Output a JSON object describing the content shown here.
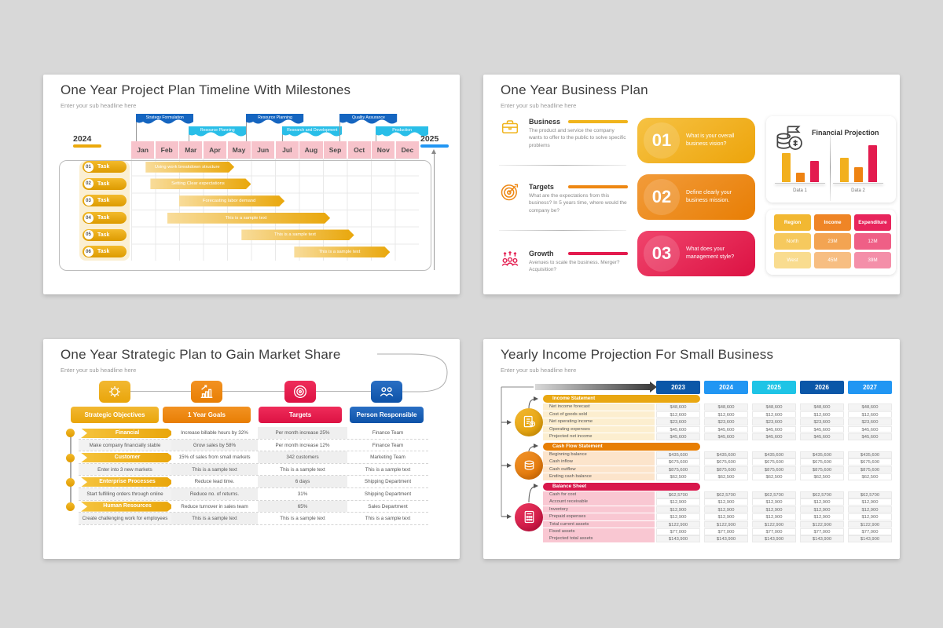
{
  "slide1": {
    "title": "One Year Project Plan Timeline With Milestones",
    "subtitle": "Enter your sub headline here",
    "year_left": "2024",
    "year_right": "2025",
    "months": [
      "Jan",
      "Feb",
      "Mar",
      "Apr",
      "May",
      "Jun",
      "Jul",
      "Aug",
      "Sep",
      "Oct",
      "Nov",
      "Dec"
    ],
    "flags": [
      {
        "label": "Strategy Formulation",
        "style": "dark",
        "month_start": 0.2,
        "month_span": 2.4
      },
      {
        "label": "Resource Planning",
        "style": "cyan",
        "month_start": 2.4,
        "month_span": 2.4
      },
      {
        "label": "Resource Planning",
        "style": "dark",
        "month_start": 4.8,
        "month_span": 2.4
      },
      {
        "label": "Research and Development",
        "style": "cyan",
        "month_start": 6.3,
        "month_span": 2.5
      },
      {
        "label": "Quality Assurance",
        "style": "dark",
        "month_start": 8.7,
        "month_span": 2.4
      },
      {
        "label": "Production",
        "style": "cyan",
        "month_start": 10.2,
        "month_span": 2.2
      }
    ],
    "tasks": [
      {
        "id": "01",
        "label": "Task",
        "text": "Using work breakdown structure",
        "start": 0.6,
        "end": 4.3
      },
      {
        "id": "02",
        "label": "Task",
        "text": "Setting Clear expectations",
        "start": 0.8,
        "end": 5.0
      },
      {
        "id": "03",
        "label": "Task",
        "text": "Forecasting labor demand",
        "start": 2.0,
        "end": 6.4
      },
      {
        "id": "04",
        "label": "Task",
        "text": "This is a sample text",
        "start": 1.5,
        "end": 8.3
      },
      {
        "id": "05",
        "label": "Task",
        "text": "This is a sample text",
        "start": 4.6,
        "end": 9.3
      },
      {
        "id": "06",
        "label": "Task",
        "text": "This is a sample text",
        "start": 6.8,
        "end": 10.8
      }
    ],
    "colors": {
      "flag_dark": "#1565C0",
      "flag_cyan": "#29BEE8",
      "month_bg": "#F7C3CB",
      "bar": "#EBA90C",
      "underline_left": "#EBA90C",
      "underline_right": "#2196F3"
    }
  },
  "slide2": {
    "title": "One Year Business Plan",
    "subtitle": "Enter your sub headline here",
    "items": [
      {
        "heading": "Business",
        "icon": "briefcase-icon",
        "accent": "#F0B41C",
        "desc": "The product and service the company wants to offer to the public to solve specific problems"
      },
      {
        "heading": "Targets",
        "icon": "target-icon",
        "accent": "#EE8712",
        "desc": "What are the expectations from this business? In 5 years time, where would the company be?"
      },
      {
        "heading": "Growth",
        "icon": "growth-icon",
        "accent": "#E31B4E",
        "desc": "Avenues to scale the business. Merger? Acquisition?"
      }
    ],
    "cards": [
      {
        "number": "01",
        "text": "What is your overall business vision?",
        "gradient": [
          "#F6C243",
          "#EDA40B"
        ]
      },
      {
        "number": "02",
        "text": "Define clearly your business mission.",
        "gradient": [
          "#F29B3A",
          "#E87E04"
        ]
      },
      {
        "number": "03",
        "text": "What does your management style?",
        "gradient": [
          "#F0446C",
          "#DC1243"
        ]
      }
    ],
    "projection": {
      "title": "Financial Projection",
      "icon": "coins-signpost-icon",
      "bar_colors": [
        "#F2B01E",
        "#EE8312",
        "#E31B4E"
      ],
      "groups": [
        {
          "label": "Data 1",
          "heights": [
            37,
            12,
            27
          ]
        },
        {
          "label": "Data 2",
          "heights": [
            31,
            19,
            47
          ]
        }
      ]
    },
    "region_table": {
      "headers": [
        "Region",
        "Income",
        "Expenditure"
      ],
      "header_colors": [
        "#F2B832",
        "#EF8526",
        "#E8255C"
      ],
      "rows": [
        {
          "cells": [
            "North",
            "23M",
            "12M"
          ],
          "colors": [
            "#F6C95E",
            "#F3A452",
            "#EF5F86"
          ]
        },
        {
          "cells": [
            "West",
            "45M",
            "39M"
          ],
          "colors": [
            "#F9DC8F",
            "#F7BE82",
            "#F48FA9"
          ]
        }
      ]
    }
  },
  "slide3": {
    "title": "One Year Strategic Plan to Gain Market Share",
    "subtitle": "Enter your sub headline here",
    "columns": [
      {
        "label": "Strategic Objectives",
        "icon": "strategy-icon",
        "color_from": "#F2B832",
        "color_to": "#E9A50A"
      },
      {
        "label": "1 Year Goals",
        "icon": "goals-icon",
        "color_from": "#F29222",
        "color_to": "#E87E04"
      },
      {
        "label": "Targets",
        "icon": "dartboard-icon",
        "color_from": "#EF2C5A",
        "color_to": "#DC1243"
      },
      {
        "label": "Person Responsible",
        "icon": "team-icon",
        "color_from": "#2A6FC4",
        "color_to": "#0D52A8"
      }
    ],
    "rows": [
      {
        "category": true,
        "cells": [
          "Financial",
          "Increase billable hours by 32%",
          "Per month increase 25%",
          "Finance Team"
        ]
      },
      {
        "category": false,
        "cells": [
          "Make company financially stable",
          "Grow sales by 58%",
          "Per month increase 12%",
          "Finance Team"
        ]
      },
      {
        "category": true,
        "cells": [
          "Customer",
          "15% of sales from small markets",
          "342 customers",
          "Marketing Team"
        ]
      },
      {
        "category": false,
        "cells": [
          "Enter into 3 new markets",
          "This is a sample text",
          "This is a sample text",
          "This is a sample text"
        ]
      },
      {
        "category": true,
        "cells": [
          "Enterprise Processes",
          "Reduce lead time.",
          "6 days",
          "Shipping Department"
        ]
      },
      {
        "category": false,
        "cells": [
          "Start fulfilling orders through online",
          "Reduce no. of returns.",
          "31%",
          "Shipping Department"
        ]
      },
      {
        "category": true,
        "cells": [
          "Human Resources",
          "Reduce turnover in sales team",
          "65%",
          "Sales Department"
        ]
      },
      {
        "category": false,
        "cells": [
          "Create challenging work for employees",
          "This is a sample text",
          "This is a sample text",
          "This is a sample text"
        ]
      }
    ]
  },
  "slide4": {
    "title": "Yearly Income Projection For Small Business",
    "subtitle": "Enter your sub headline here",
    "years": [
      "2023",
      "2024",
      "2025",
      "2026",
      "2027"
    ],
    "year_colors": [
      "#0B57A8",
      "#2196F3",
      "#1EC4E6",
      "#0B57A8",
      "#2196F3"
    ],
    "sections": [
      {
        "name": "Income Statement",
        "icon": "document-dollar-icon",
        "color": "#E9A711",
        "tint": "#FCEECF",
        "circle_gradient": [
          "#F2B832",
          "#E09B00"
        ],
        "rows": [
          {
            "label": "Net income forecast",
            "value": "$48,600"
          },
          {
            "label": "Cost of goods sold",
            "value": "$12,600"
          },
          {
            "label": "Net operating income",
            "value": "$23,600"
          },
          {
            "label": "Operating expenses",
            "value": "$45,600"
          },
          {
            "label": "Projected net income",
            "value": "$45,600"
          }
        ]
      },
      {
        "name": "Cash Flow Statement",
        "icon": "coins-icon",
        "color": "#E77E04",
        "tint": "#FCE4CB",
        "circle_gradient": [
          "#F0932B",
          "#E07000"
        ],
        "rows": [
          {
            "label": "Beginning balance",
            "value": "$435,600"
          },
          {
            "label": "Cash inflow",
            "value": "$675,600"
          },
          {
            "label": "Cash outflow",
            "value": "$875,600"
          },
          {
            "label": "Ending cash balance",
            "value": "$62,500"
          }
        ]
      },
      {
        "name": "Balance Sheet",
        "icon": "calculator-icon",
        "color": "#D8174B",
        "tint": "#F9C7D2",
        "circle_gradient": [
          "#E8385E",
          "#C80D3E"
        ],
        "rows": [
          {
            "label": "Cash for cost",
            "value": "$62,5700"
          },
          {
            "label": "Account receivable",
            "value": "$12,900"
          },
          {
            "label": "Inventory",
            "value": "$12,900"
          },
          {
            "label": "Prepaid expenses",
            "value": "$12,900"
          },
          {
            "label": "Total current assets",
            "value": "$122,900"
          },
          {
            "label": "Fixed assets",
            "value": "$77,000"
          },
          {
            "label": "Projected total assets",
            "value": "$143,900"
          }
        ]
      }
    ]
  }
}
